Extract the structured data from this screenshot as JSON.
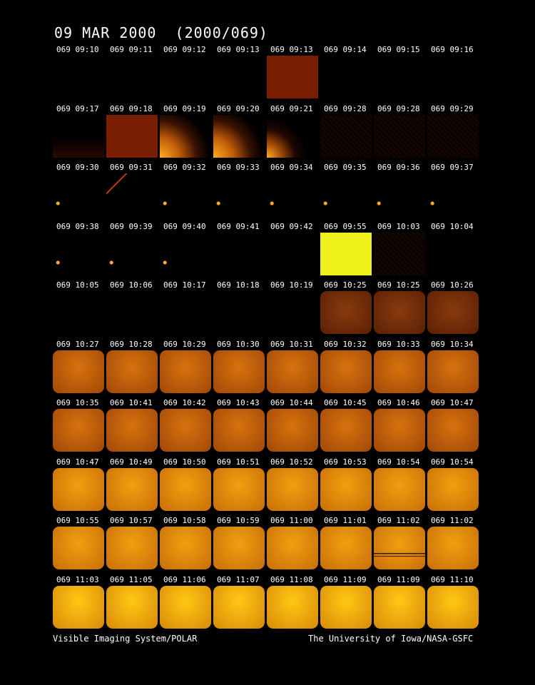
{
  "title": "09 MAR 2000  (2000/069)",
  "footer": {
    "left": "Visible Imaging System/POLAR",
    "right": "The University of Iowa/NASA-GSFC"
  },
  "rows": [
    [
      "069 09:10",
      "069 09:11",
      "069 09:12",
      "069 09:13",
      "069 09:13",
      "069 09:14",
      "069 09:15",
      "069 09:16"
    ],
    [
      "069 09:17",
      "069 09:18",
      "069 09:19",
      "069 09:20",
      "069 09:21",
      "069 09:28",
      "069 09:28",
      "069 09:29"
    ],
    [
      "069 09:30",
      "069 09:31",
      "069 09:32",
      "069 09:33",
      "069 09:34",
      "069 09:35",
      "069 09:36",
      "069 09:37"
    ],
    [
      "069 09:38",
      "069 09:39",
      "069 09:40",
      "069 09:41",
      "069 09:42",
      "069 09:55",
      "069 10:03",
      "069 10:04"
    ],
    [
      "069 10:05",
      "069 10:06",
      "069 10:17",
      "069 10:18",
      "069 10:19",
      "069 10:25",
      "069 10:25",
      "069 10:26"
    ],
    [
      "069 10:27",
      "069 10:28",
      "069 10:29",
      "069 10:30",
      "069 10:31",
      "069 10:32",
      "069 10:33",
      "069 10:34"
    ],
    [
      "069 10:35",
      "069 10:41",
      "069 10:42",
      "069 10:43",
      "069 10:44",
      "069 10:45",
      "069 10:46",
      "069 10:47"
    ],
    [
      "069 10:47",
      "069 10:49",
      "069 10:50",
      "069 10:51",
      "069 10:52",
      "069 10:53",
      "069 10:54",
      "069 10:54"
    ],
    [
      "069 10:55",
      "069 10:57",
      "069 10:58",
      "069 10:59",
      "069 11:00",
      "069 11:01",
      "069 11:02",
      "069 11:02"
    ],
    [
      "069 11:03",
      "069 11:05",
      "069 11:06",
      "069 11:07",
      "069 11:08",
      "069 11:09",
      "069 11:09",
      "069 11:10"
    ]
  ],
  "frames": [
    [
      "dark",
      "dark",
      "dark",
      "dark",
      "red-full",
      "dark",
      "dark",
      "dark"
    ],
    [
      "dark-noise",
      "red-full",
      "flare",
      "flare",
      "flare-small",
      "noise",
      "noise",
      "noise"
    ],
    [
      "dot",
      "streak",
      "dot",
      "dot",
      "dot",
      "dot",
      "dot",
      "dot"
    ],
    [
      "dot",
      "dot",
      "dot",
      "dark",
      "dark",
      "yellow-full",
      "noise",
      "dark"
    ],
    [
      "dark",
      "dark",
      "dark",
      "dark",
      "dark",
      "orange-dim",
      "orange-dim",
      "orange-dim"
    ],
    [
      "orange",
      "orange",
      "orange",
      "orange",
      "orange",
      "orange",
      "orange",
      "orange"
    ],
    [
      "orange",
      "orange",
      "orange",
      "orange",
      "orange",
      "orange",
      "orange",
      "orange"
    ],
    [
      "yellow",
      "yellow",
      "yellow",
      "yellow",
      "yellow",
      "yellow",
      "yellow",
      "yellow"
    ],
    [
      "yellow",
      "yellow",
      "yellow",
      "yellow",
      "yellow",
      "yellow",
      "yellow-lines",
      "yellow"
    ],
    [
      "bright",
      "bright",
      "bright",
      "bright",
      "bright",
      "bright",
      "bright",
      "bright"
    ]
  ],
  "colors": {
    "background": "#000000",
    "text": "#ffffff",
    "red_full": "#7a1e02",
    "yellow_full": "#f0f01a",
    "orange_dim": "#8a3a0c",
    "orange": "#d8720e",
    "yellow": "#f0a010",
    "bright": "#ffc814"
  }
}
